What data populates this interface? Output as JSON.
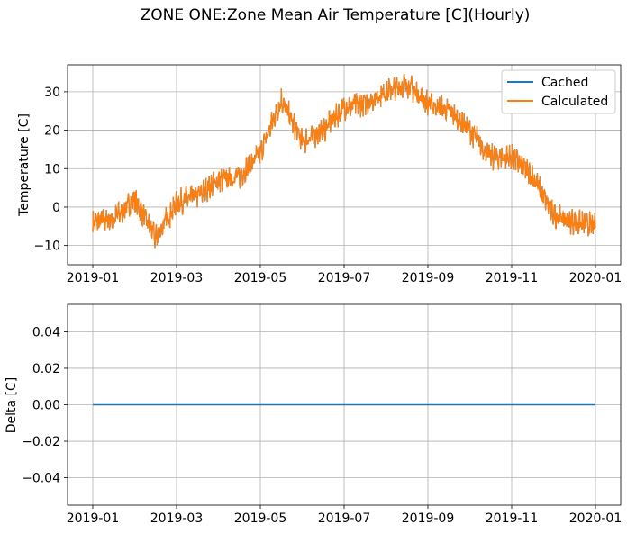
{
  "colors": {
    "cached": "#1f77b4",
    "calculated": "#ff7f0e",
    "grid": "#b0b0b0"
  },
  "chart_data": [
    {
      "type": "line",
      "title": "ZONE ONE:Zone Mean Air Temperature [C](Hourly)",
      "xlabel": "",
      "ylabel": "Temperature [C]",
      "x_ticks": [
        "2019-01",
        "2019-03",
        "2019-05",
        "2019-07",
        "2019-09",
        "2019-11",
        "2020-01"
      ],
      "y_ticks": [
        "30",
        "20",
        "10",
        "0",
        "−10"
      ],
      "ylim": [
        -15,
        37
      ],
      "legend": {
        "position": "top-right",
        "entries": [
          "Cached",
          "Calculated"
        ]
      },
      "grid": true,
      "series": [
        {
          "name": "Cached",
          "note": "hourly series, overlapped by Calculated"
        },
        {
          "name": "Calculated",
          "note": "hourly series"
        }
      ],
      "x_month": [
        0,
        0.5,
        1,
        1.5,
        2,
        2.5,
        3,
        3.5,
        4,
        4.5,
        5,
        5.5,
        6,
        6.5,
        7,
        7.5,
        8,
        8.5,
        9,
        9.5,
        10,
        10.5,
        11,
        11.5,
        12
      ],
      "y_values": [
        -4,
        -3,
        2,
        -8,
        1,
        3,
        7,
        8,
        14,
        28,
        17,
        20,
        26,
        27,
        30,
        32,
        27,
        25,
        20,
        13,
        13,
        8,
        -2,
        -4,
        -5
      ]
    },
    {
      "type": "line",
      "xlabel": "",
      "ylabel": "Delta [C]",
      "x_ticks": [
        "2019-01",
        "2019-03",
        "2019-05",
        "2019-07",
        "2019-09",
        "2019-11",
        "2020-01"
      ],
      "y_ticks": [
        "0.04",
        "0.02",
        "0.00",
        "−0.02",
        "−0.04"
      ],
      "ylim": [
        -0.055,
        0.055
      ],
      "grid": true,
      "series": [
        {
          "name": "Delta",
          "x_month": [
            0,
            12
          ],
          "values": [
            0,
            0
          ]
        }
      ]
    }
  ]
}
